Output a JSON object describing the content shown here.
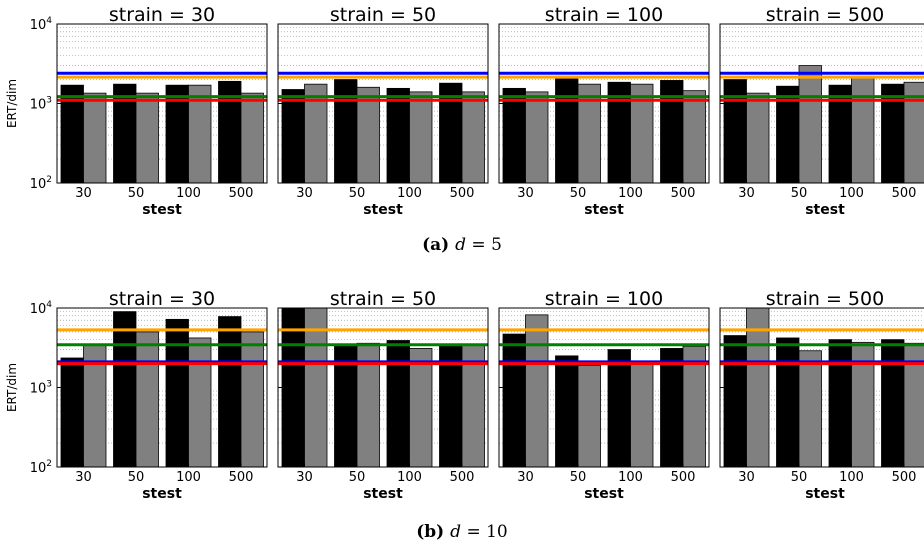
{
  "colors": {
    "bar_primary": "#000000",
    "bar_secondary": "#808080",
    "line_blue": "#0000ff",
    "line_orange": "#ffa500",
    "line_green": "#008000",
    "line_red": "#ff0000",
    "grid": "#b0b0b0"
  },
  "chart_data": [
    {
      "type": "bar",
      "caption_label": "(a)",
      "caption_var": "d",
      "caption_eq": "= 5",
      "ylabel": "ERT/dim",
      "yscale": "log",
      "ylim": [
        100,
        10000
      ],
      "ytick_base": "10",
      "ytick_exps": [
        "2",
        "3",
        "4"
      ],
      "xlabel": "stest",
      "grid_y": true,
      "panels": [
        {
          "title": "strain = 30",
          "categories": [
            "30",
            "50",
            "100",
            "500"
          ],
          "series": [
            {
              "color_key": "bar_primary",
              "values": [
                1700,
                1750,
                1700,
                1900
              ]
            },
            {
              "color_key": "bar_secondary",
              "values": [
                1350,
                1350,
                1700,
                1350
              ]
            }
          ]
        },
        {
          "title": "strain = 50",
          "categories": [
            "30",
            "50",
            "100",
            "500"
          ],
          "series": [
            {
              "color_key": "bar_primary",
              "values": [
                1500,
                2000,
                1550,
                1800
              ]
            },
            {
              "color_key": "bar_secondary",
              "values": [
                1750,
                1600,
                1400,
                1400
              ]
            }
          ]
        },
        {
          "title": "strain = 100",
          "categories": [
            "30",
            "50",
            "100",
            "500"
          ],
          "series": [
            {
              "color_key": "bar_primary",
              "values": [
                1550,
                2200,
                1850,
                1950
              ]
            },
            {
              "color_key": "bar_secondary",
              "values": [
                1400,
                1750,
                1750,
                1450
              ]
            }
          ]
        },
        {
          "title": "strain = 500",
          "categories": [
            "30",
            "50",
            "100",
            "500"
          ],
          "series": [
            {
              "color_key": "bar_primary",
              "values": [
                2000,
                1650,
                1700,
                1750
              ]
            },
            {
              "color_key": "bar_secondary",
              "values": [
                1350,
                3000,
                2200,
                1850
              ]
            }
          ]
        }
      ],
      "reference_lines": [
        {
          "color_key": "line_blue",
          "value": 2400
        },
        {
          "color_key": "line_orange",
          "value": 2150
        },
        {
          "color_key": "line_green",
          "value": 1220
        },
        {
          "color_key": "line_red",
          "value": 1100
        }
      ]
    },
    {
      "type": "bar",
      "caption_label": "(b)",
      "caption_var": "d",
      "caption_eq": "= 10",
      "ylabel": "ERT/dim",
      "yscale": "log",
      "ylim": [
        100,
        10000
      ],
      "ytick_base": "10",
      "ytick_exps": [
        "2",
        "3",
        "4"
      ],
      "xlabel": "stest",
      "grid_y": true,
      "panels": [
        {
          "title": "strain = 30",
          "categories": [
            "30",
            "50",
            "100",
            "500"
          ],
          "series": [
            {
              "color_key": "bar_primary",
              "values": [
                2350,
                9000,
                7200,
                7800
              ]
            },
            {
              "color_key": "bar_secondary",
              "values": [
                3500,
                5000,
                4200,
                5000
              ]
            }
          ]
        },
        {
          "title": "strain = 50",
          "categories": [
            "30",
            "50",
            "100",
            "500"
          ],
          "series": [
            {
              "color_key": "bar_primary",
              "values": [
                10000,
                3300,
                3900,
                3400
              ]
            },
            {
              "color_key": "bar_secondary",
              "values": [
                10000,
                3600,
                3100,
                3400
              ]
            }
          ]
        },
        {
          "title": "strain = 100",
          "categories": [
            "30",
            "50",
            "100",
            "500"
          ],
          "series": [
            {
              "color_key": "bar_primary",
              "values": [
                4700,
                2500,
                3000,
                3100
              ]
            },
            {
              "color_key": "bar_secondary",
              "values": [
                8200,
                1900,
                2000,
                3300
              ]
            }
          ]
        },
        {
          "title": "strain = 500",
          "categories": [
            "30",
            "50",
            "100",
            "500"
          ],
          "series": [
            {
              "color_key": "bar_primary",
              "values": [
                4500,
                4200,
                4000,
                4000
              ]
            },
            {
              "color_key": "bar_secondary",
              "values": [
                10000,
                2900,
                3700,
                3600
              ]
            }
          ]
        }
      ],
      "reference_lines": [
        {
          "color_key": "line_orange",
          "value": 5300
        },
        {
          "color_key": "line_green",
          "value": 3450
        },
        {
          "color_key": "line_blue",
          "value": 2100
        },
        {
          "color_key": "line_red",
          "value": 2000
        }
      ]
    }
  ]
}
